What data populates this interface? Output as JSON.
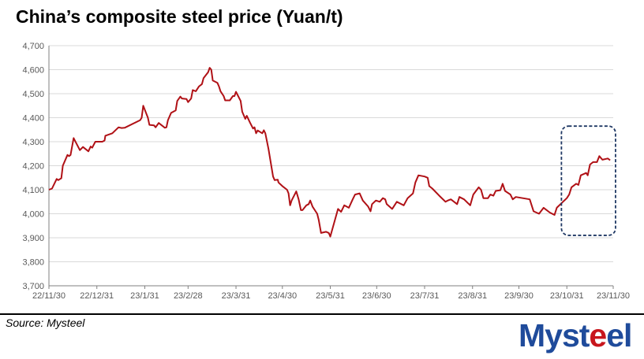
{
  "title": "China’s composite steel price (Yuan/t)",
  "source": "Source: Mysteel",
  "logo": {
    "text": "Mysteel",
    "parts": [
      "Myst",
      "e",
      "el"
    ]
  },
  "colors": {
    "line": "#b01116",
    "grid": "#d9d9d9",
    "highlight": "#1f3864",
    "logo_blue": "#1f4b9b",
    "logo_red": "#c8161d"
  },
  "chart_data": {
    "type": "line",
    "title": "China’s composite steel price (Yuan/t)",
    "xlabel": "",
    "ylabel": "Yuan/t",
    "x_unit": "days since 22/11/30",
    "xlim": [
      0,
      365
    ],
    "ylim": [
      3700,
      4700
    ],
    "grid": true,
    "yticks": [
      3700,
      3800,
      3900,
      4000,
      4100,
      4200,
      4300,
      4400,
      4500,
      4600,
      4700
    ],
    "ytick_labels": [
      "3,700",
      "3,800",
      "3,900",
      "4,000",
      "4,100",
      "4,200",
      "4,300",
      "4,400",
      "4,500",
      "4,600",
      "4,700"
    ],
    "xticks": [
      {
        "day": 0,
        "label": "22/11/30"
      },
      {
        "day": 31,
        "label": "22/12/31"
      },
      {
        "day": 62,
        "label": "23/1/31"
      },
      {
        "day": 90,
        "label": "23/2/28"
      },
      {
        "day": 121,
        "label": "23/3/31"
      },
      {
        "day": 151,
        "label": "23/4/30"
      },
      {
        "day": 182,
        "label": "23/5/31"
      },
      {
        "day": 212,
        "label": "23/6/30"
      },
      {
        "day": 243,
        "label": "23/7/31"
      },
      {
        "day": 274,
        "label": "23/8/31"
      },
      {
        "day": 304,
        "label": "23/9/30"
      },
      {
        "day": 335,
        "label": "23/10/31"
      },
      {
        "day": 365,
        "label": "23/11/30"
      }
    ],
    "highlight": {
      "day_range": [
        331.5,
        366.5
      ],
      "value_range": [
        3910,
        4365
      ],
      "style": "dashed-rounded-box"
    },
    "series": [
      {
        "name": "Composite steel price",
        "points": [
          [
            0,
            4100
          ],
          [
            2,
            4105
          ],
          [
            5,
            4145
          ],
          [
            6,
            4140
          ],
          [
            8,
            4148
          ],
          [
            9,
            4200
          ],
          [
            12,
            4245
          ],
          [
            13,
            4240
          ],
          [
            14,
            4245
          ],
          [
            16,
            4315
          ],
          [
            20,
            4265
          ],
          [
            22,
            4278
          ],
          [
            25.5,
            4260
          ],
          [
            27,
            4280
          ],
          [
            28,
            4275
          ],
          [
            30,
            4300
          ],
          [
            34.5,
            4300
          ],
          [
            36,
            4305
          ],
          [
            36.5,
            4325
          ],
          [
            41,
            4335
          ],
          [
            45,
            4360
          ],
          [
            47,
            4357
          ],
          [
            49,
            4358
          ],
          [
            59,
            4390
          ],
          [
            60,
            4400
          ],
          [
            61,
            4450
          ],
          [
            64,
            4400
          ],
          [
            65,
            4370
          ],
          [
            68,
            4368
          ],
          [
            69,
            4360
          ],
          [
            71,
            4378
          ],
          [
            75,
            4358
          ],
          [
            76,
            4360
          ],
          [
            77,
            4390
          ],
          [
            79,
            4420
          ],
          [
            82,
            4430
          ],
          [
            83,
            4470
          ],
          [
            85,
            4488
          ],
          [
            86,
            4480
          ],
          [
            89,
            4478
          ],
          [
            90,
            4465
          ],
          [
            92,
            4480
          ],
          [
            93,
            4515
          ],
          [
            95,
            4510
          ],
          [
            97,
            4530
          ],
          [
            99,
            4540
          ],
          [
            100,
            4565
          ],
          [
            103,
            4590
          ],
          [
            104,
            4608
          ],
          [
            105,
            4600
          ],
          [
            106,
            4555
          ],
          [
            109,
            4545
          ],
          [
            110,
            4530
          ],
          [
            111,
            4510
          ],
          [
            113,
            4490
          ],
          [
            114,
            4472
          ],
          [
            117,
            4472
          ],
          [
            119,
            4490
          ],
          [
            120,
            4490
          ],
          [
            121,
            4508
          ],
          [
            122,
            4495
          ],
          [
            124,
            4470
          ],
          [
            125,
            4425
          ],
          [
            127,
            4395
          ],
          [
            128,
            4408
          ],
          [
            130,
            4380
          ],
          [
            132,
            4355
          ],
          [
            133,
            4360
          ],
          [
            134,
            4335
          ],
          [
            135,
            4347
          ],
          [
            138,
            4335
          ],
          [
            139,
            4348
          ],
          [
            140,
            4335
          ],
          [
            142,
            4270
          ],
          [
            145,
            4155
          ],
          [
            146,
            4140
          ],
          [
            148,
            4142
          ],
          [
            148.5,
            4130
          ],
          [
            151,
            4115
          ],
          [
            154,
            4100
          ],
          [
            155,
            4085
          ],
          [
            156,
            4035
          ],
          [
            157,
            4055
          ],
          [
            160,
            4093
          ],
          [
            161.5,
            4060
          ],
          [
            163,
            4015
          ],
          [
            164,
            4015
          ],
          [
            166.5,
            4035
          ],
          [
            168,
            4040
          ],
          [
            169,
            4055
          ],
          [
            170.5,
            4030
          ],
          [
            173.5,
            4000
          ],
          [
            174.5,
            3975
          ],
          [
            176,
            3920
          ],
          [
            179.3,
            3925
          ],
          [
            181,
            3920
          ],
          [
            182,
            3905
          ],
          [
            187,
            4020
          ],
          [
            189,
            4008
          ],
          [
            191,
            4035
          ],
          [
            194,
            4025
          ],
          [
            196.5,
            4060
          ],
          [
            198,
            4080
          ],
          [
            201,
            4085
          ],
          [
            203,
            4055
          ],
          [
            206.5,
            4030
          ],
          [
            208,
            4010
          ],
          [
            209,
            4040
          ],
          [
            211.5,
            4055
          ],
          [
            214,
            4050
          ],
          [
            216,
            4065
          ],
          [
            217.5,
            4060
          ],
          [
            218.5,
            4040
          ],
          [
            222,
            4020
          ],
          [
            225,
            4050
          ],
          [
            229.5,
            4035
          ],
          [
            232,
            4065
          ],
          [
            235.5,
            4085
          ],
          [
            237,
            4130
          ],
          [
            239,
            4160
          ],
          [
            243,
            4155
          ],
          [
            245,
            4150
          ],
          [
            246,
            4115
          ],
          [
            248,
            4105
          ],
          [
            252.5,
            4075
          ],
          [
            256.5,
            4050
          ],
          [
            258,
            4055
          ],
          [
            260,
            4060
          ],
          [
            264,
            4040
          ],
          [
            265.5,
            4070
          ],
          [
            268.5,
            4060
          ],
          [
            272.5,
            4035
          ],
          [
            274.5,
            4080
          ],
          [
            278,
            4110
          ],
          [
            279.5,
            4100
          ],
          [
            281,
            4065
          ],
          [
            284,
            4065
          ],
          [
            285.5,
            4080
          ],
          [
            287.5,
            4075
          ],
          [
            289,
            4095
          ],
          [
            292,
            4098
          ],
          [
            293.5,
            4125
          ],
          [
            295,
            4095
          ],
          [
            298.5,
            4080
          ],
          [
            300,
            4060
          ],
          [
            302,
            4070
          ],
          [
            311,
            4060
          ],
          [
            313.5,
            4010
          ],
          [
            317,
            4000
          ],
          [
            320,
            4025
          ],
          [
            324,
            4005
          ],
          [
            327,
            3995
          ],
          [
            328.5,
            4025
          ],
          [
            332.5,
            4050
          ],
          [
            335,
            4065
          ],
          [
            336.5,
            4080
          ],
          [
            338,
            4110
          ],
          [
            341,
            4125
          ],
          [
            342.5,
            4120
          ],
          [
            344,
            4160
          ],
          [
            347.5,
            4170
          ],
          [
            348.5,
            4160
          ],
          [
            350,
            4205
          ],
          [
            352,
            4215
          ],
          [
            354.5,
            4215
          ],
          [
            356,
            4240
          ],
          [
            358,
            4225
          ],
          [
            361.5,
            4230
          ],
          [
            363,
            4223
          ]
        ]
      }
    ]
  }
}
